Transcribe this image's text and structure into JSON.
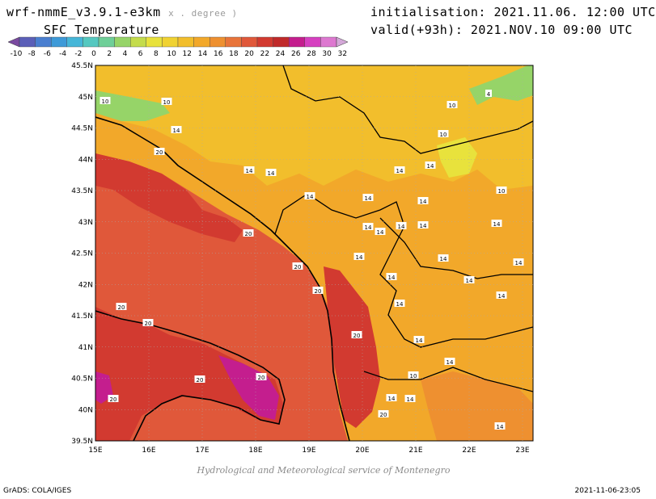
{
  "header": {
    "model_title": "wrf-nmmE_v3.9.1-e3km",
    "model_units": "x . degree )",
    "variable_title": "SFC Temperature",
    "init_label": "initialisation:",
    "init_value": "2021.11.06. 12:00 UTC",
    "valid_label": "valid(+93h):",
    "valid_value": "2021.NOV.10 09:00 UTC"
  },
  "colorbar": {
    "labels": [
      "-10",
      "-8",
      "-6",
      "-4",
      "-2",
      "0",
      "2",
      "4",
      "6",
      "8",
      "10",
      "12",
      "14",
      "16",
      "18",
      "20",
      "22",
      "24",
      "26",
      "28",
      "30",
      "32"
    ],
    "colors": [
      "#7a4aa0",
      "#5b5fb8",
      "#4a7fd0",
      "#3e9ad8",
      "#46b6d8",
      "#55c8c0",
      "#6fcf98",
      "#96d468",
      "#c4dc4c",
      "#e8e23c",
      "#f0d232",
      "#f2be2c",
      "#f2a82a",
      "#ee9030",
      "#e8743a",
      "#e0583a",
      "#d23a30",
      "#c02a2a",
      "#c41e8e",
      "#d640c0",
      "#dd78d0",
      "#d4a8d8"
    ]
  },
  "map": {
    "lat_labels": [
      "45.5N",
      "45N",
      "44.5N",
      "44N",
      "43.5N",
      "43N",
      "42.5N",
      "42N",
      "41.5N",
      "41N",
      "40.5N",
      "40N",
      "39.5N"
    ],
    "lon_labels": [
      "15E",
      "16E",
      "17E",
      "18E",
      "19E",
      "20E",
      "21E",
      "22E",
      "23E"
    ],
    "contour_labels": [
      "10",
      "10",
      "14",
      "20",
      "14",
      "14",
      "14",
      "10",
      "10",
      "4",
      "14",
      "14",
      "14",
      "14",
      "10",
      "14",
      "20",
      "14",
      "14",
      "14",
      "14",
      "14",
      "20",
      "20",
      "14",
      "14",
      "14",
      "20",
      "20",
      "20",
      "14",
      "14",
      "20",
      "20",
      "20",
      "20",
      "14",
      "14",
      "14",
      "10",
      "14",
      "14",
      "14"
    ],
    "colors": {
      "sea": "#e0583a",
      "warm_sea": "#d23a30",
      "land_south": "#ee9030",
      "land_mid": "#f2a82a",
      "land_north": "#f2be2c",
      "cool": "#e8e23c",
      "cold": "#96d468",
      "hot": "#c41e8e",
      "coast": "#000000"
    }
  },
  "footer": {
    "credit": "Hydrological and Meteorological service of Montenegro",
    "software": "GrADS: COLA/IGES",
    "timestamp": "2021-11-06-23:05"
  }
}
